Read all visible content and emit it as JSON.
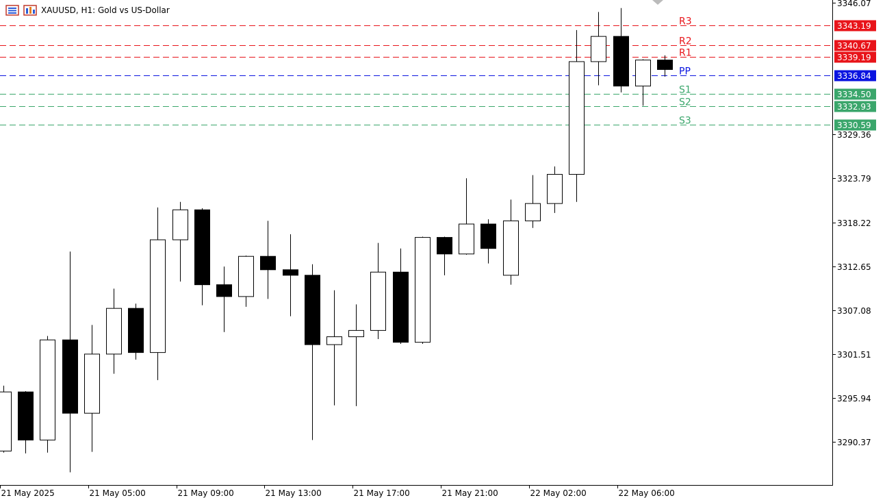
{
  "window": {
    "symbol_title": "XAUUSD, H1:  Gold vs US-Dollar"
  },
  "icons": [
    "chart-icon",
    "symbol-icon"
  ],
  "colors": {
    "bull_fill": "#ffffff",
    "bear_fill": "#000000",
    "resistance": "#e8141a",
    "pivot": "#0a14e0",
    "support": "#3aa66b",
    "pivot_tag_bg": "#0a14e0",
    "resistance_tag_bg": "#e8141a",
    "support_tag_bg": "#3aa66b"
  },
  "chart_data": {
    "type": "candlestick",
    "ylim": [
      3285.5,
      3346.07
    ],
    "y_ticks": [
      "3346.07",
      "3329.36",
      "3323.79",
      "3318.22",
      "3312.65",
      "3307.08",
      "3301.51",
      "3295.94",
      "3290.37"
    ],
    "x_ticks": [
      {
        "index": 0,
        "label": "21 May 2025"
      },
      {
        "index": 4,
        "label": "21 May 05:00"
      },
      {
        "index": 8,
        "label": "21 May 09:00"
      },
      {
        "index": 12,
        "label": "21 May 13:00"
      },
      {
        "index": 16,
        "label": "21 May 17:00"
      },
      {
        "index": 20,
        "label": "21 May 21:00"
      },
      {
        "index": 24,
        "label": "22 May 02:00"
      },
      {
        "index": 28,
        "label": "22 May 06:00"
      }
    ],
    "candles": [
      {
        "o": 3289.2,
        "h": 3297.5,
        "l": 3289.0,
        "c": 3296.7
      },
      {
        "o": 3296.7,
        "h": 3296.8,
        "l": 3288.9,
        "c": 3290.6
      },
      {
        "o": 3290.6,
        "h": 3303.8,
        "l": 3289.0,
        "c": 3303.3
      },
      {
        "o": 3303.3,
        "h": 3314.5,
        "l": 3286.5,
        "c": 3294.0
      },
      {
        "o": 3294.0,
        "h": 3305.2,
        "l": 3289.1,
        "c": 3301.5
      },
      {
        "o": 3301.5,
        "h": 3309.8,
        "l": 3299.0,
        "c": 3307.3
      },
      {
        "o": 3307.3,
        "h": 3307.9,
        "l": 3300.8,
        "c": 3301.7
      },
      {
        "o": 3301.7,
        "h": 3320.1,
        "l": 3298.2,
        "c": 3316.0
      },
      {
        "o": 3316.0,
        "h": 3320.8,
        "l": 3310.7,
        "c": 3319.8
      },
      {
        "o": 3319.8,
        "h": 3320.0,
        "l": 3307.7,
        "c": 3310.3
      },
      {
        "o": 3310.3,
        "h": 3312.6,
        "l": 3304.3,
        "c": 3308.8
      },
      {
        "o": 3308.8,
        "h": 3314.0,
        "l": 3307.5,
        "c": 3313.9
      },
      {
        "o": 3313.9,
        "h": 3318.4,
        "l": 3308.5,
        "c": 3312.2
      },
      {
        "o": 3312.2,
        "h": 3316.7,
        "l": 3306.3,
        "c": 3311.5
      },
      {
        "o": 3311.5,
        "h": 3312.9,
        "l": 3290.6,
        "c": 3302.7
      },
      {
        "o": 3302.7,
        "h": 3309.6,
        "l": 3295.0,
        "c": 3303.7
      },
      {
        "o": 3303.7,
        "h": 3307.8,
        "l": 3294.9,
        "c": 3304.5
      },
      {
        "o": 3304.5,
        "h": 3315.6,
        "l": 3303.4,
        "c": 3311.9
      },
      {
        "o": 3311.9,
        "h": 3314.9,
        "l": 3302.8,
        "c": 3303.0
      },
      {
        "o": 3303.0,
        "h": 3316.4,
        "l": 3302.8,
        "c": 3316.3
      },
      {
        "o": 3316.3,
        "h": 3316.4,
        "l": 3311.5,
        "c": 3314.2
      },
      {
        "o": 3314.2,
        "h": 3323.8,
        "l": 3314.1,
        "c": 3318.0
      },
      {
        "o": 3318.0,
        "h": 3318.6,
        "l": 3313.0,
        "c": 3314.9
      },
      {
        "o": 3311.5,
        "h": 3321.1,
        "l": 3310.3,
        "c": 3318.4
      },
      {
        "o": 3318.4,
        "h": 3324.2,
        "l": 3317.5,
        "c": 3320.6
      },
      {
        "o": 3320.6,
        "h": 3325.3,
        "l": 3319.4,
        "c": 3324.3
      },
      {
        "o": 3324.3,
        "h": 3342.6,
        "l": 3320.8,
        "c": 3338.6
      },
      {
        "o": 3338.6,
        "h": 3344.9,
        "l": 3335.6,
        "c": 3341.8
      },
      {
        "o": 3341.8,
        "h": 3345.4,
        "l": 3334.7,
        "c": 3335.5
      },
      {
        "o": 3335.5,
        "h": 3338.9,
        "l": 3333.0,
        "c": 3338.8
      },
      {
        "o": 3338.8,
        "h": 3339.4,
        "l": 3336.7,
        "c": 3337.6
      }
    ],
    "pivot_levels": [
      {
        "name": "R3",
        "value": "3343.19",
        "v": 3343.19,
        "kind": "resistance"
      },
      {
        "name": "R2",
        "value": "3340.67",
        "v": 3340.67,
        "kind": "resistance"
      },
      {
        "name": "R1",
        "value": "3339.19",
        "v": 3339.19,
        "kind": "resistance"
      },
      {
        "name": "PP",
        "value": "3336.84",
        "v": 3336.84,
        "kind": "pivot"
      },
      {
        "name": "S1",
        "value": "3334.50",
        "v": 3334.5,
        "kind": "support"
      },
      {
        "name": "S2",
        "value": "3332.93",
        "v": 3332.93,
        "kind": "support"
      },
      {
        "name": "S3",
        "value": "3330.59",
        "v": 3330.59,
        "kind": "support"
      }
    ]
  }
}
